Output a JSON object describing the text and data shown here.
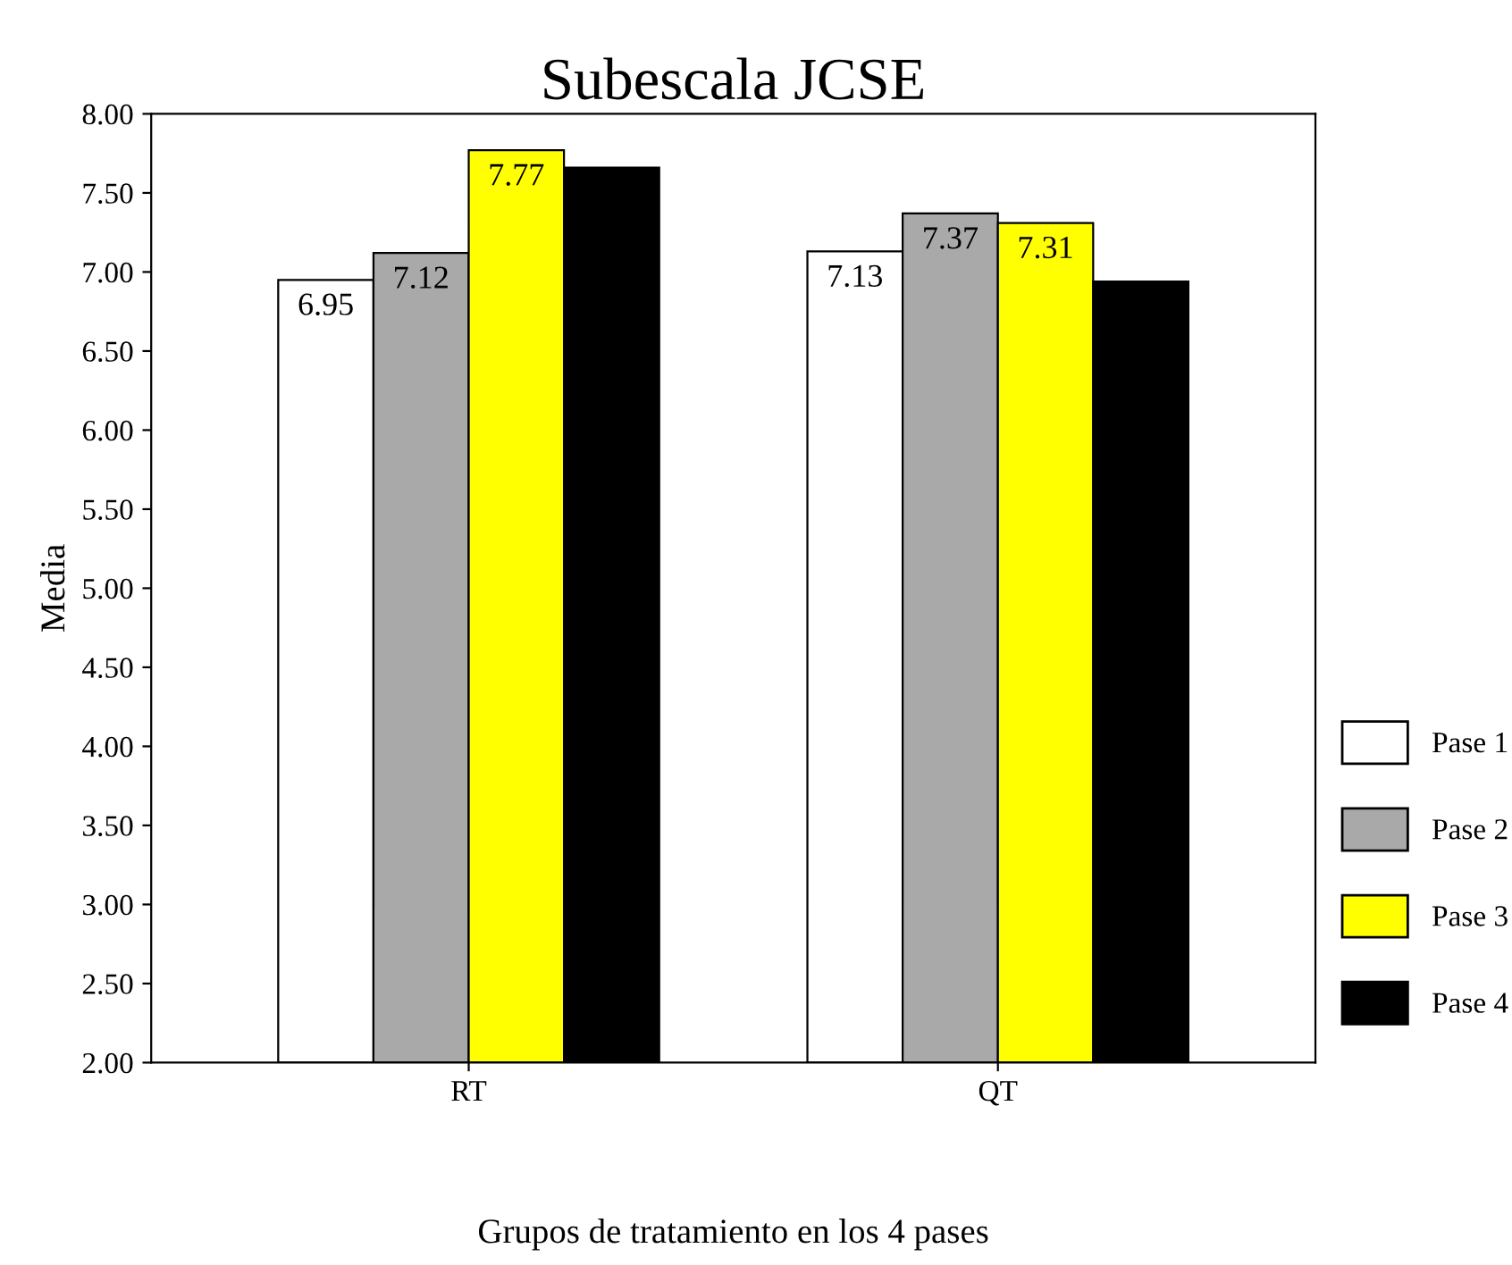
{
  "chart_data": {
    "type": "bar",
    "title": "Subescala JCSE",
    "xlabel": "Grupos de tratamiento en los 4 pases",
    "ylabel": "Media",
    "categories": [
      "RT",
      "QT"
    ],
    "series": [
      {
        "name": "Pase 1",
        "color": "#ffffff",
        "values": [
          6.95,
          7.13
        ],
        "value_labels": [
          "6.95",
          "7.13"
        ]
      },
      {
        "name": "Pase 2",
        "color": "#a9a9a9",
        "values": [
          7.12,
          7.37
        ],
        "value_labels": [
          "7.12",
          "7.37"
        ]
      },
      {
        "name": "Pase 3",
        "color": "#ffff00",
        "values": [
          7.77,
          7.31
        ],
        "value_labels": [
          "7.77",
          "7.31"
        ]
      },
      {
        "name": "Pase 4",
        "color": "#000000",
        "values": [
          7.66,
          6.94
        ],
        "value_labels": [
          null,
          null
        ]
      }
    ],
    "ylim": [
      2.0,
      8.0
    ],
    "yticks": [
      {
        "value": 2.0,
        "label": "2.00"
      },
      {
        "value": 2.5,
        "label": "2.50"
      },
      {
        "value": 3.0,
        "label": "3.00"
      },
      {
        "value": 3.5,
        "label": "3.50"
      },
      {
        "value": 4.0,
        "label": "4.00"
      },
      {
        "value": 4.5,
        "label": "4.50"
      },
      {
        "value": 5.0,
        "label": "5.00"
      },
      {
        "value": 5.5,
        "label": "5.50"
      },
      {
        "value": 6.0,
        "label": "6.00"
      },
      {
        "value": 6.5,
        "label": "6.50"
      },
      {
        "value": 7.0,
        "label": "7.00"
      },
      {
        "value": 7.5,
        "label": "7.50"
      },
      {
        "value": 8.0,
        "label": "8.00"
      }
    ],
    "grid": false,
    "legend": "right"
  }
}
